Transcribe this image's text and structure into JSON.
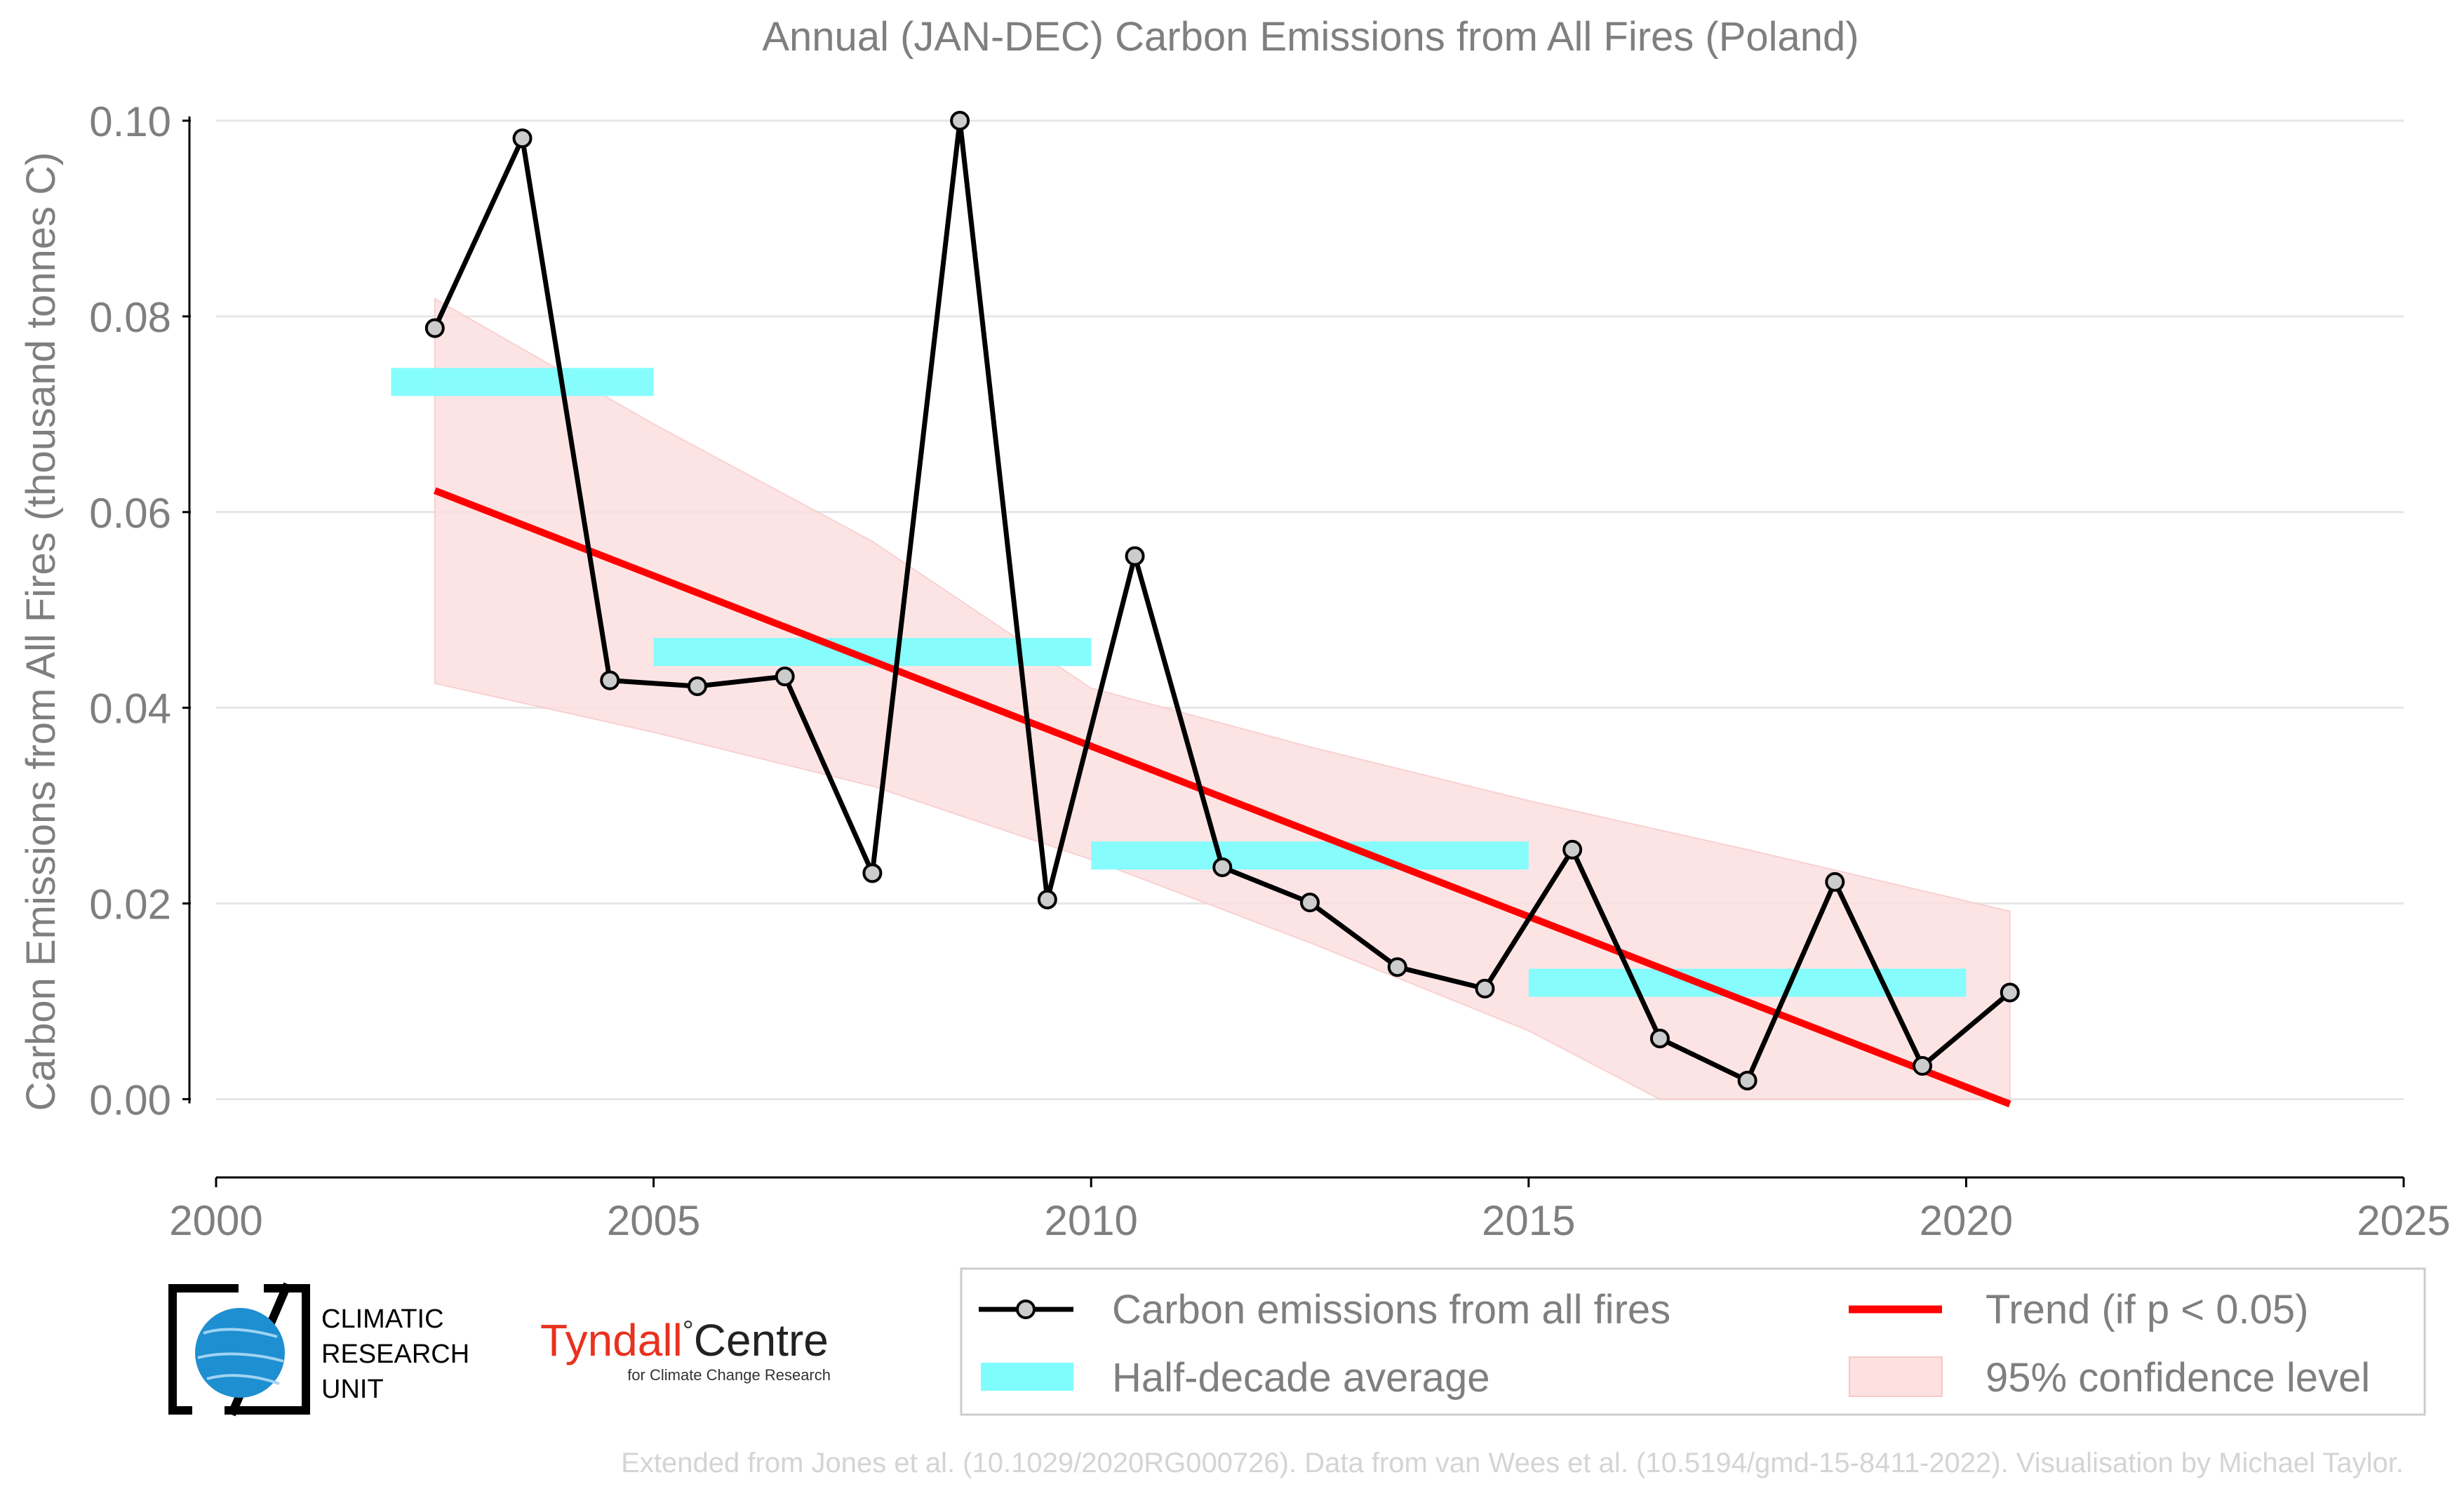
{
  "chart_data": {
    "type": "line",
    "title": "Annual (JAN-DEC) Carbon Emissions from All Fires (Poland)",
    "ylabel": "Carbon Emissions from All Fires (thousand tonnes C)",
    "xlabel": "",
    "xlim": [
      2000,
      2025
    ],
    "ylim": [
      -0.008,
      0.1
    ],
    "x_ticks": [
      "2000",
      "2005",
      "2010",
      "2015",
      "2020",
      "2025"
    ],
    "y_ticks": [
      "0.00",
      "0.02",
      "0.04",
      "0.06",
      "0.08",
      "0.10"
    ],
    "grid": true,
    "series": [
      {
        "name": "Carbon emissions from all fires",
        "color": "#000000",
        "x": [
          2002.5,
          2003.5,
          2004.5,
          2005.5,
          2006.5,
          2007.5,
          2008.5,
          2009.5,
          2010.5,
          2011.5,
          2012.5,
          2013.5,
          2014.5,
          2015.5,
          2016.5,
          2017.5,
          2018.5,
          2019.5,
          2020.5
        ],
        "values": [
          0.0788,
          0.0982,
          0.0428,
          0.0422,
          0.0432,
          0.0231,
          0.1,
          0.0204,
          0.0555,
          0.0237,
          0.0201,
          0.0135,
          0.0113,
          0.0255,
          0.0062,
          0.0019,
          0.0222,
          0.0034,
          0.0109
        ]
      }
    ],
    "half_decade_average": {
      "name": "Half-decade average",
      "color": "#7ffdfd",
      "periods": [
        {
          "start": 2002,
          "end": 2005,
          "value": 0.0733
        },
        {
          "start": 2005,
          "end": 2010,
          "value": 0.0457
        },
        {
          "start": 2010,
          "end": 2015,
          "value": 0.0249
        },
        {
          "start": 2015,
          "end": 2020,
          "value": 0.0119
        }
      ]
    },
    "trend": {
      "name": "Trend (if p < 0.05)",
      "color": "#ff0000",
      "x": [
        2002.5,
        2020.5
      ],
      "values": [
        0.0622,
        -0.0005
      ]
    },
    "confidence_band": {
      "name": "95% confidence level",
      "color": "#fde0e0",
      "x": [
        2002.5,
        2005,
        2007.5,
        2010,
        2012.5,
        2015,
        2016.5,
        2017.5,
        2020.5
      ],
      "upper": [
        0.0818,
        0.069,
        0.057,
        0.042,
        0.036,
        0.0305,
        0.0275,
        0.0255,
        0.0192
      ],
      "lower": [
        0.0425,
        0.0375,
        0.032,
        0.0245,
        0.016,
        0.007,
        0.0,
        0.0,
        0.0
      ]
    },
    "legend_position": "bottom-right"
  },
  "legend": {
    "emissions": "Carbon emissions from all fires",
    "half_decade": "Half-decade average",
    "trend": "Trend (if p < 0.05)",
    "confidence": "95% confidence level"
  },
  "logos": {
    "cru_line1": "CLIMATIC",
    "cru_line2": "RESEARCH",
    "cru_line3": "UNIT",
    "tyndall_name": "Tyndall",
    "tyndall_degree": "°",
    "tyndall_centre": "Centre",
    "tyndall_sub": "for Climate Change Research"
  },
  "footer": "Extended from Jones et al. (10.1029/2020RG000726). Data from van Wees et al. (10.5194/gmd-15-8411-2022). Visualisation by Michael Taylor.",
  "colors": {
    "text_grey": "#7f7f7f",
    "footer_grey": "#d4d4d4",
    "grid": "#e6e6e6"
  }
}
